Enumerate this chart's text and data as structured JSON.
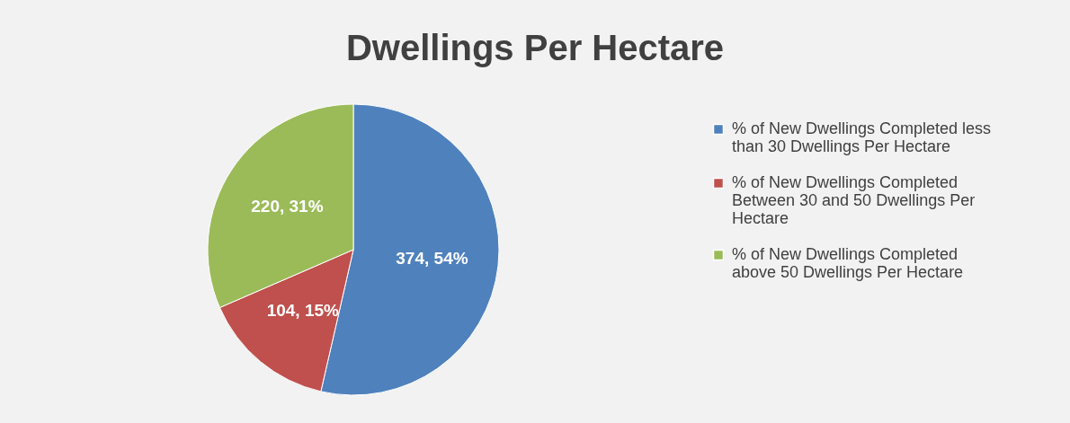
{
  "chart_data": {
    "type": "pie",
    "title": "Dwellings Per Hectare",
    "categories": [
      "% of New Dwellings Completed less than 30 Dwellings Per Hectare",
      "% of New Dwellings Completed Between 30 and 50 Dwellings Per Hectare",
      "% of New Dwellings Completed above 50 Dwellings Per Hectare"
    ],
    "values": [
      374,
      104,
      220
    ],
    "colors": [
      "#4f81bd",
      "#c0504d",
      "#9bbb59"
    ],
    "value_labels": [
      "374, 54%",
      "104, 15%",
      "220, 31%"
    ],
    "legend": "right"
  }
}
